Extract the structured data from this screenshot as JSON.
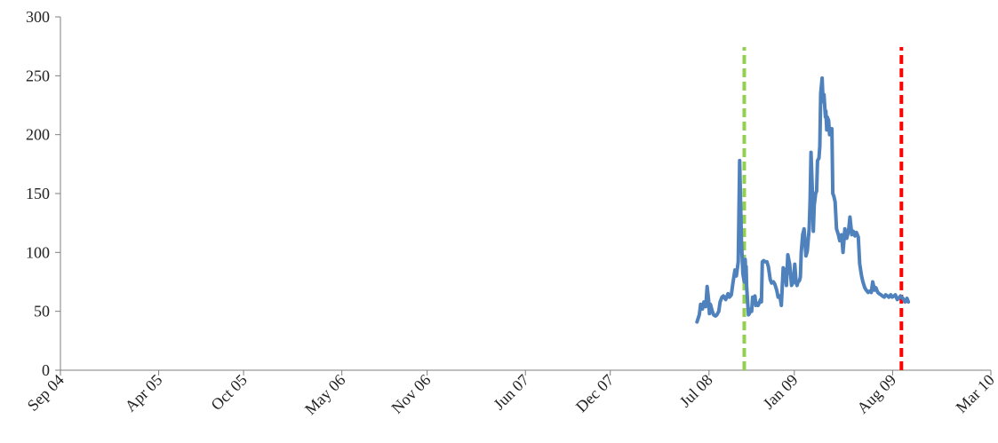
{
  "chart_data": {
    "type": "line",
    "title": "",
    "xlabel": "",
    "ylabel": "",
    "ylim": [
      0,
      300
    ],
    "y_ticks": [
      0,
      50,
      100,
      150,
      200,
      250,
      300
    ],
    "y_tick_labels": [
      "0",
      "50",
      "100",
      "150",
      "200",
      "250",
      "300"
    ],
    "x_ticks": [
      "2004-09-01",
      "2005-04-01",
      "2005-10-01",
      "2006-05-01",
      "2006-11-01",
      "2007-06-01",
      "2007-12-01",
      "2008-07-01",
      "2009-01-01",
      "2009-08-01",
      "2010-03-01"
    ],
    "x_tick_labels": [
      "Sep 04",
      "Apr 05",
      "Oct 05",
      "May 06",
      "Nov 06",
      "Jun 07",
      "Dec 07",
      "Jul 08",
      "Jan 09",
      "Aug 09",
      "Mar 10"
    ],
    "grid": false,
    "legend": "none",
    "colors": {
      "series": "#4f81bd",
      "vline_1": "#92d050",
      "vline_2": "#ff0000",
      "axis": "#7f7f7f"
    },
    "vertical_lines": [
      {
        "x": "2008-09-15",
        "style": "dashed",
        "color": "#92d050"
      },
      {
        "x": "2009-08-20",
        "style": "dashed",
        "color": "#ff0000"
      }
    ],
    "series": [
      {
        "x": [
          "2008-06-05",
          "2008-06-10",
          "2008-06-13",
          "2008-06-17",
          "2008-06-20",
          "2008-06-24",
          "2008-06-27",
          "2008-06-30",
          "2008-07-02",
          "2008-07-04",
          "2008-07-08",
          "2008-07-11",
          "2008-07-15",
          "2008-07-18",
          "2008-07-22",
          "2008-07-25",
          "2008-07-29",
          "2008-08-01",
          "2008-08-06",
          "2008-08-11",
          "2008-08-14",
          "2008-08-18",
          "2008-08-22",
          "2008-08-26",
          "2008-08-29",
          "2008-09-02",
          "2008-09-05",
          "2008-09-09",
          "2008-09-12",
          "2008-09-15",
          "2008-09-17",
          "2008-09-18",
          "2008-09-19",
          "2008-09-20",
          "2008-09-22",
          "2008-09-24",
          "2008-09-26",
          "2008-09-29",
          "2008-10-01",
          "2008-10-03",
          "2008-10-06",
          "2008-10-08",
          "2008-10-10",
          "2008-10-13",
          "2008-10-15",
          "2008-10-17",
          "2008-10-20",
          "2008-10-22",
          "2008-10-24",
          "2008-10-27",
          "2008-10-30",
          "2008-11-03",
          "2008-11-06",
          "2008-11-10",
          "2008-11-13",
          "2008-11-17",
          "2008-11-20",
          "2008-11-24",
          "2008-11-27",
          "2008-12-01",
          "2008-12-04",
          "2008-12-08",
          "2008-12-11",
          "2008-12-15",
          "2008-12-18",
          "2008-12-22",
          "2008-12-26",
          "2008-12-30",
          "2009-01-02",
          "2009-01-05",
          "2009-01-07",
          "2009-01-09",
          "2009-01-12",
          "2009-01-14",
          "2009-01-16",
          "2009-01-19",
          "2009-01-22",
          "2009-01-26",
          "2009-01-29",
          "2009-02-02",
          "2009-02-04",
          "2009-02-06",
          "2009-02-09",
          "2009-02-11",
          "2009-02-13",
          "2009-02-16",
          "2009-02-18",
          "2009-02-20",
          "2009-02-23",
          "2009-02-25",
          "2009-02-27",
          "2009-03-02",
          "2009-03-04",
          "2009-03-06",
          "2009-03-09",
          "2009-03-10",
          "2009-03-12",
          "2009-03-13",
          "2009-03-16",
          "2009-03-18",
          "2009-03-20",
          "2009-03-23",
          "2009-03-25",
          "2009-03-27",
          "2009-03-30",
          "2009-04-02",
          "2009-04-06",
          "2009-04-09",
          "2009-04-13",
          "2009-04-16",
          "2009-04-20",
          "2009-04-24",
          "2009-04-28",
          "2009-05-01",
          "2009-05-05",
          "2009-05-08",
          "2009-05-12",
          "2009-05-15",
          "2009-05-19",
          "2009-05-22",
          "2009-05-26",
          "2009-05-29",
          "2009-06-02",
          "2009-06-05",
          "2009-06-09",
          "2009-06-12",
          "2009-06-16",
          "2009-06-19",
          "2009-06-23",
          "2009-06-26",
          "2009-06-30",
          "2009-07-03",
          "2009-07-07",
          "2009-07-10",
          "2009-07-14",
          "2009-07-17",
          "2009-07-21",
          "2009-07-24",
          "2009-07-28",
          "2009-07-31",
          "2009-08-04",
          "2009-08-07",
          "2009-08-11",
          "2009-08-14",
          "2009-08-18",
          "2009-08-21",
          "2009-08-25",
          "2009-08-28",
          "2009-09-01",
          "2009-09-04"
        ],
        "values": [
          41,
          47,
          56,
          52,
          58,
          54,
          71,
          60,
          48,
          56,
          50,
          47,
          46,
          47,
          50,
          58,
          62,
          63,
          60,
          65,
          62,
          64,
          75,
          85,
          80,
          92,
          178,
          110,
          82,
          75,
          94,
          85,
          88,
          72,
          60,
          47,
          48,
          52,
          50,
          62,
          60,
          63,
          55,
          57,
          55,
          57,
          60,
          58,
          92,
          93,
          92,
          92,
          88,
          77,
          74,
          75,
          73,
          68,
          62,
          63,
          55,
          87,
          85,
          72,
          98,
          90,
          72,
          75,
          90,
          74,
          72,
          75,
          76,
          79,
          100,
          115,
          120,
          97,
          101,
          120,
          142,
          185,
          150,
          118,
          140,
          150,
          152,
          178,
          180,
          190,
          235,
          248,
          228,
          234,
          215,
          220,
          204,
          215,
          212,
          200,
          203,
          205,
          150,
          148,
          143,
          120,
          115,
          110,
          115,
          100,
          120,
          112,
          118,
          130,
          115,
          118,
          114,
          117,
          113,
          90,
          80,
          75,
          70,
          68,
          66,
          67,
          66,
          75,
          68,
          70,
          66,
          65,
          64,
          63,
          62,
          64,
          63,
          62,
          64,
          62,
          63,
          64,
          60,
          61,
          63,
          62,
          60,
          58,
          61,
          58
        ]
      }
    ]
  }
}
